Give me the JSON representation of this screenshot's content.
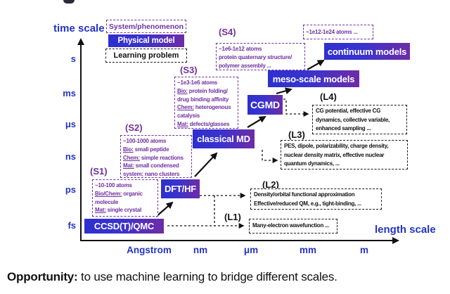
{
  "axes": {
    "y_title": "time scale",
    "x_title": "length scale",
    "y_ticks": [
      "s",
      "ms",
      "μs",
      "ns",
      "ps",
      "fs"
    ],
    "x_ticks": [
      "Angstrom",
      "nm",
      "μm",
      "mm",
      "m"
    ]
  },
  "legend": {
    "system": "System/phenomenon",
    "physical": "Physical model",
    "learning": "Learning problem"
  },
  "models": {
    "ccsd": "CCSD(T)/QMC",
    "dft": "DFT/HF",
    "classical_md": "classical MD",
    "cgmd": "CGMD",
    "meso": "meso-scale models",
    "continuum": "continuum models"
  },
  "system_boxes": {
    "s1": {
      "tag": "(S1)",
      "lines": [
        [
          {
            "t": "~10-100 atoms"
          }
        ],
        [
          {
            "u": "Bio/Chem:"
          },
          {
            "t": " organic"
          }
        ],
        [
          {
            "t": "molecule"
          }
        ],
        [
          {
            "u": "Mat:"
          },
          {
            "t": " single crystal"
          }
        ]
      ]
    },
    "s2": {
      "tag": "(S2)",
      "lines": [
        [
          {
            "t": "~100-1000 atoms"
          }
        ],
        [
          {
            "u": "Bio:"
          },
          {
            "t": " small peptide"
          }
        ],
        [
          {
            "u": "Chem:"
          },
          {
            "t": " simple reactions"
          }
        ],
        [
          {
            "u": "Mat:"
          },
          {
            "t": " small condensed"
          }
        ],
        [
          {
            "t": "system; nano clusters"
          }
        ]
      ]
    },
    "s3": {
      "tag": "(S3)",
      "lines": [
        [
          {
            "t": "~1e3-1e6 atoms"
          }
        ],
        [
          {
            "u": "Bio:"
          },
          {
            "t": " protein folding/"
          }
        ],
        [
          {
            "t": "drug binding affinity"
          }
        ],
        [
          {
            "u": "Chem:"
          },
          {
            "t": " heterogenous"
          }
        ],
        [
          {
            "t": "catalysis"
          }
        ],
        [
          {
            "u": "Mat:"
          },
          {
            "t": " defects/glasses"
          }
        ]
      ]
    },
    "s4": {
      "tag": "(S4)",
      "lines": [
        [
          {
            "t": "~1e6-1e12 atoms"
          }
        ],
        [
          {
            "t": "protein quaternary structure/"
          }
        ],
        [
          {
            "t": "polymer assembly ..."
          }
        ]
      ]
    },
    "s5": {
      "lines": [
        [
          {
            "t": "~1e12-1e24 atoms ..."
          }
        ]
      ]
    }
  },
  "learning_boxes": {
    "l1": {
      "tag": "(L1)",
      "lines": [
        "Many-electron wavefunction ..."
      ]
    },
    "l2": {
      "tag": "(L2)",
      "lines": [
        "Density/orbital functional approximation",
        "Effective/reduced QM, e.g., tight-binding, ..."
      ]
    },
    "l3": {
      "tag": "(L3)",
      "lines": [
        "PES, dipole, polarizability, charge density,",
        "nuclear density matrix, effective nuclear",
        "quantum dynamics, ..."
      ]
    },
    "l4": {
      "tag": "(L4)",
      "lines": [
        "CG potential, effective CG",
        "dynamics, collective variable,",
        "enhanced sampling ..."
      ]
    }
  },
  "caption": {
    "bold": "Opportunity:",
    "text": " to use machine learning to bridge different scales."
  },
  "colors": {
    "axis_blue": "#2433c0",
    "annotation_purple": "#7030a0",
    "box_gradient_start": "#2e2fd0",
    "box_gradient_end": "#6e2ca6"
  }
}
